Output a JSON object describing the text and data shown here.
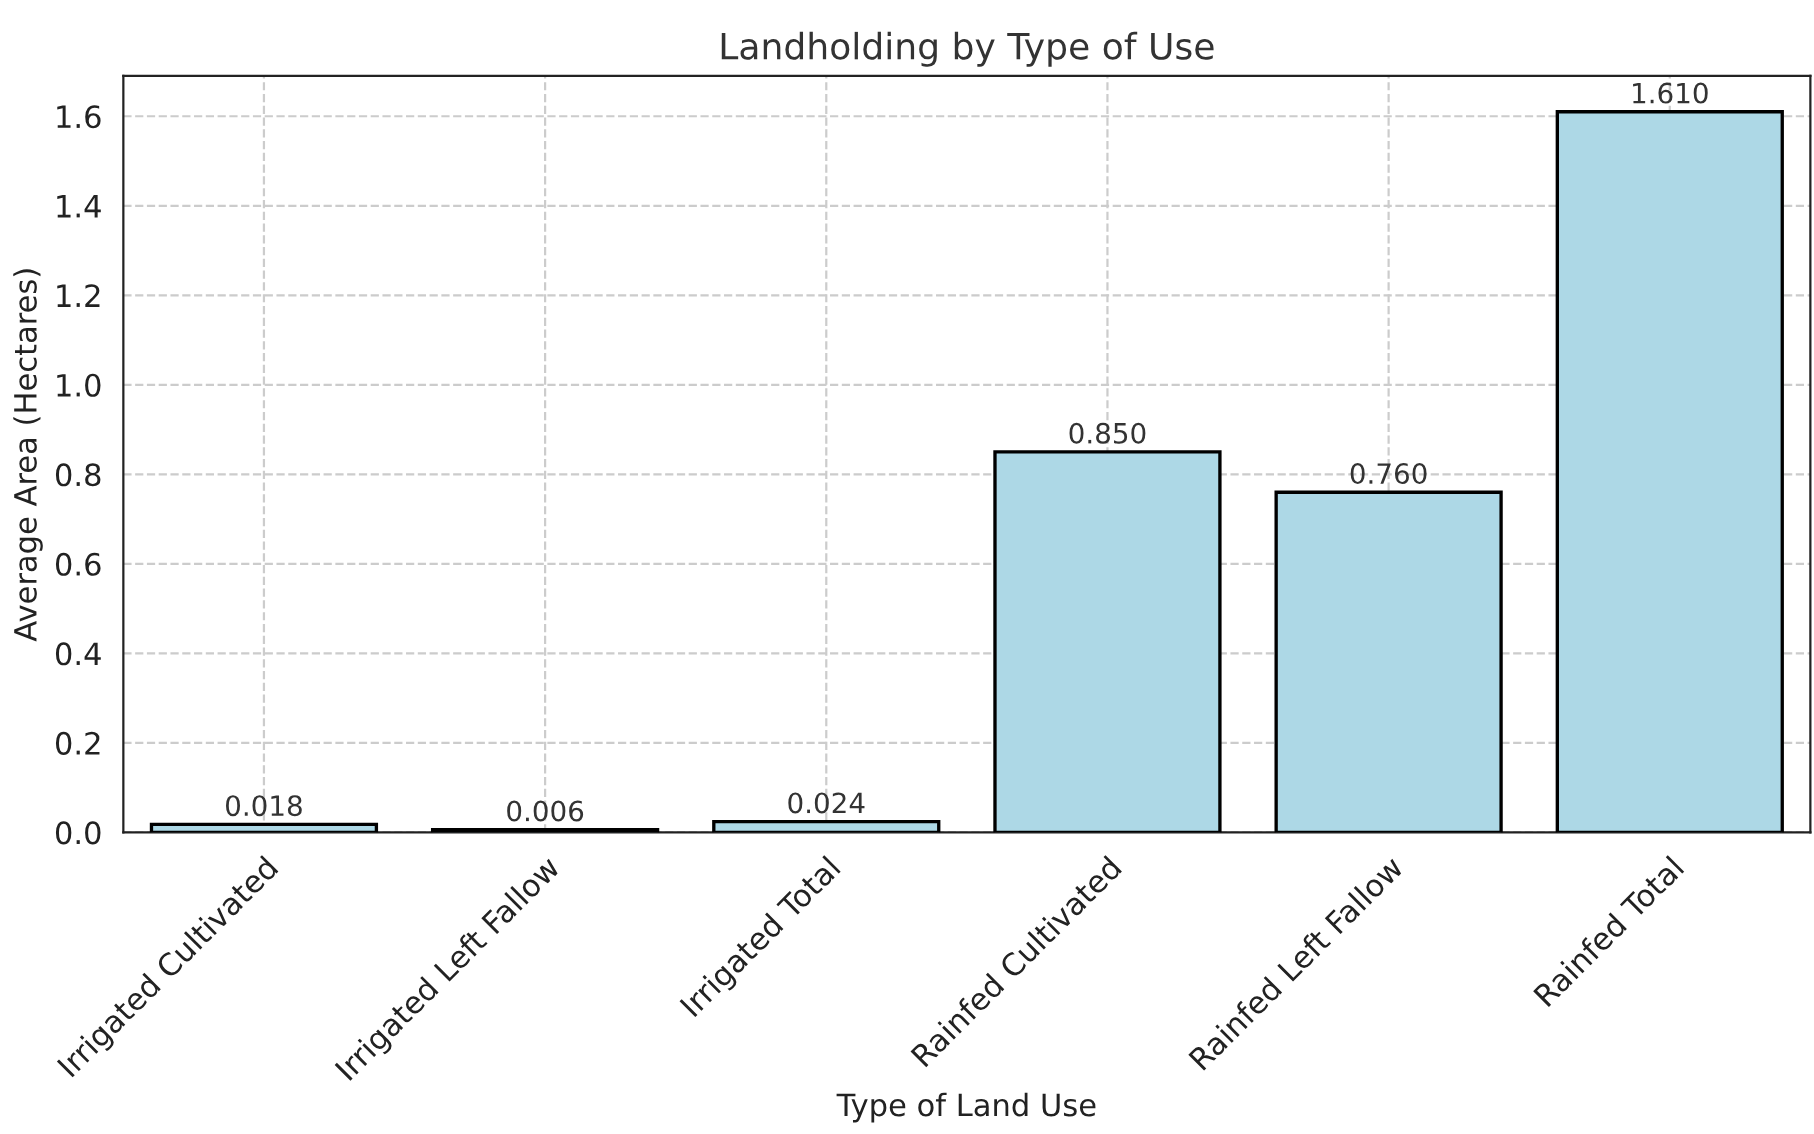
{
  "chart_data": {
    "type": "bar",
    "title": "Landholding by Type of Use",
    "xlabel": "Type of Land Use",
    "ylabel": "Average Area (Hectares)",
    "categories": [
      "Irrigated Cultivated",
      "Irrigated Left Fallow",
      "Irrigated Total",
      "Rainfed Cultivated",
      "Rainfed Left Fallow",
      "Rainfed Total"
    ],
    "values": [
      0.018,
      0.006,
      0.024,
      0.85,
      0.76,
      1.61
    ],
    "value_labels": [
      "0.018",
      "0.006",
      "0.024",
      "0.850",
      "0.760",
      "1.610"
    ],
    "color": "#add8e6",
    "ylim": [
      0,
      1.69
    ],
    "yticks": [
      {
        "value": 0,
        "label": "0.0"
      },
      {
        "value": 0.2,
        "label": "0.2"
      },
      {
        "value": 0.4,
        "label": "0.4"
      },
      {
        "value": 0.6,
        "label": "0.6"
      },
      {
        "value": 0.8,
        "label": "0.8"
      },
      {
        "value": 1.0,
        "label": "1.0"
      },
      {
        "value": 1.2,
        "label": "1.2"
      },
      {
        "value": 1.4,
        "label": "1.4"
      },
      {
        "value": 1.6,
        "label": "1.6"
      }
    ],
    "grid": true
  }
}
